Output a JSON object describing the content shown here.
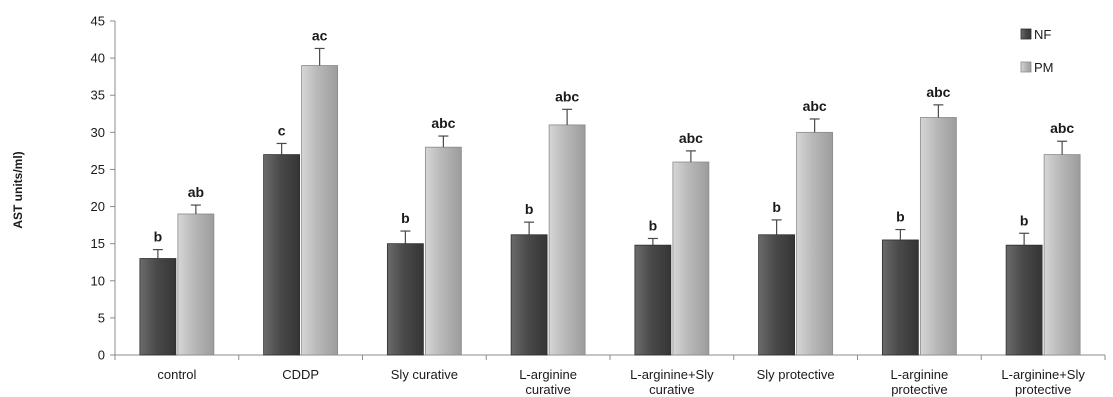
{
  "chart_data": {
    "type": "bar",
    "title": "",
    "xlabel": "",
    "ylabel": "AST units/ml)",
    "ylim": [
      0,
      45
    ],
    "yticks": [
      0,
      5,
      10,
      15,
      20,
      25,
      30,
      35,
      40,
      45
    ],
    "grid": false,
    "legend_position": "top-right",
    "categories": [
      [
        "control"
      ],
      [
        "CDDP"
      ],
      [
        "Sly curative"
      ],
      [
        "L-arginine",
        "curative"
      ],
      [
        "L-arginine+Sly",
        "curative"
      ],
      [
        "Sly protective"
      ],
      [
        "L-arginine",
        "protective"
      ],
      [
        "L-arginine+Sly",
        "protective"
      ]
    ],
    "series": [
      {
        "name": "NF",
        "color": "#555555",
        "values": [
          13,
          27,
          15,
          16.2,
          14.8,
          16.2,
          15.5,
          14.8
        ],
        "errors": [
          1.2,
          1.5,
          1.7,
          1.7,
          0.9,
          2.0,
          1.4,
          1.6
        ],
        "labels": [
          "b",
          "c",
          "b",
          "b",
          "b",
          "b",
          "b",
          "b"
        ]
      },
      {
        "name": "PM",
        "color": "#bdbdbd",
        "values": [
          19,
          39,
          28,
          31,
          26,
          30,
          32,
          27
        ],
        "errors": [
          1.2,
          2.3,
          1.5,
          2.1,
          1.5,
          1.8,
          1.7,
          1.8
        ],
        "labels": [
          "ab",
          "ac",
          "abc",
          "abc",
          "abc",
          "abc",
          "abc",
          "abc"
        ]
      }
    ]
  }
}
